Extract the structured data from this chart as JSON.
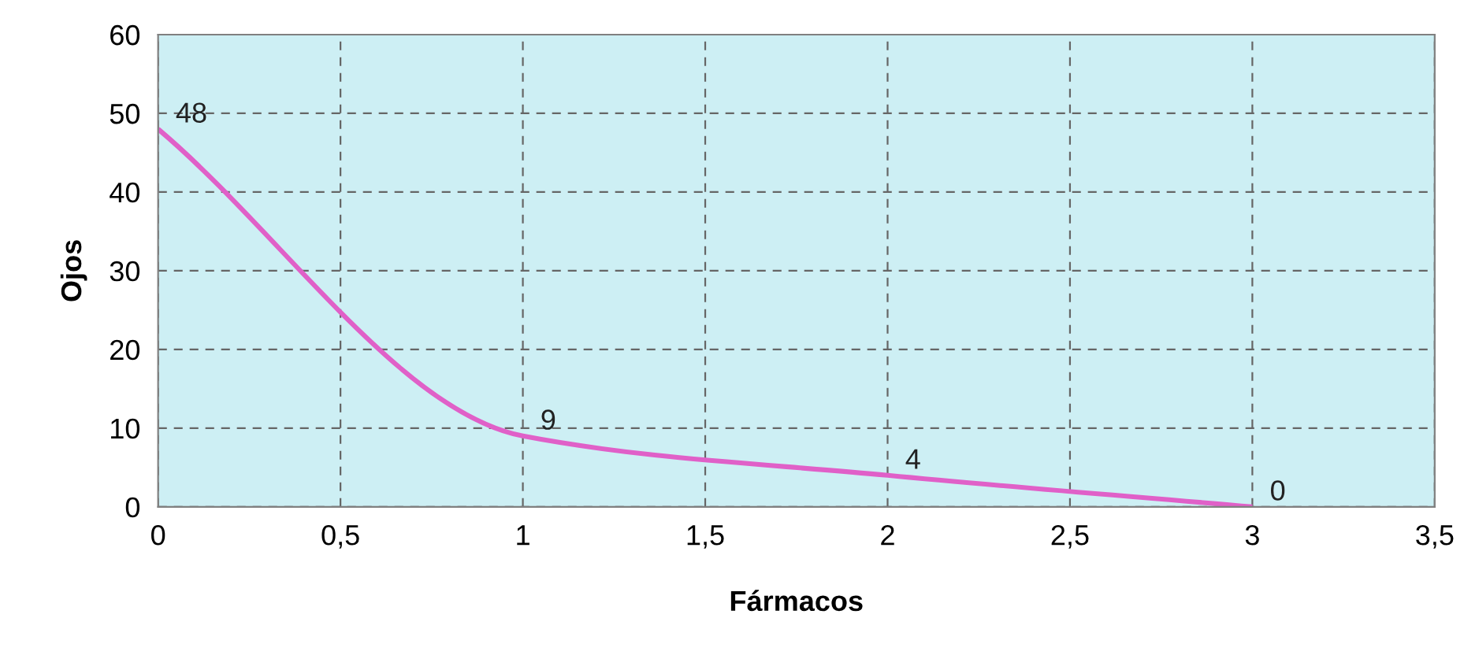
{
  "chart_data": {
    "type": "line",
    "xlabel": "Fármacos",
    "ylabel": "Ojos",
    "x": [
      0,
      1,
      2,
      3
    ],
    "series": [
      {
        "color": "#e060c8",
        "values": [
          48,
          9,
          4,
          0
        ]
      }
    ],
    "xlim": [
      0,
      3.5
    ],
    "xticks": [
      {
        "value": 0,
        "label": "0"
      },
      {
        "value": 0.5,
        "label": "0,5"
      },
      {
        "value": 1,
        "label": "1"
      },
      {
        "value": 1.5,
        "label": "1,5"
      },
      {
        "value": 2,
        "label": "2"
      },
      {
        "value": 2.5,
        "label": "2,5"
      },
      {
        "value": 3,
        "label": "3"
      },
      {
        "value": 3.5,
        "label": "3,5"
      }
    ],
    "ylim": [
      0,
      60
    ],
    "yticks": [
      0,
      10,
      20,
      30,
      40,
      50,
      60
    ],
    "grid": true,
    "data_labels": true,
    "marker": "none",
    "line_style": "solid"
  }
}
